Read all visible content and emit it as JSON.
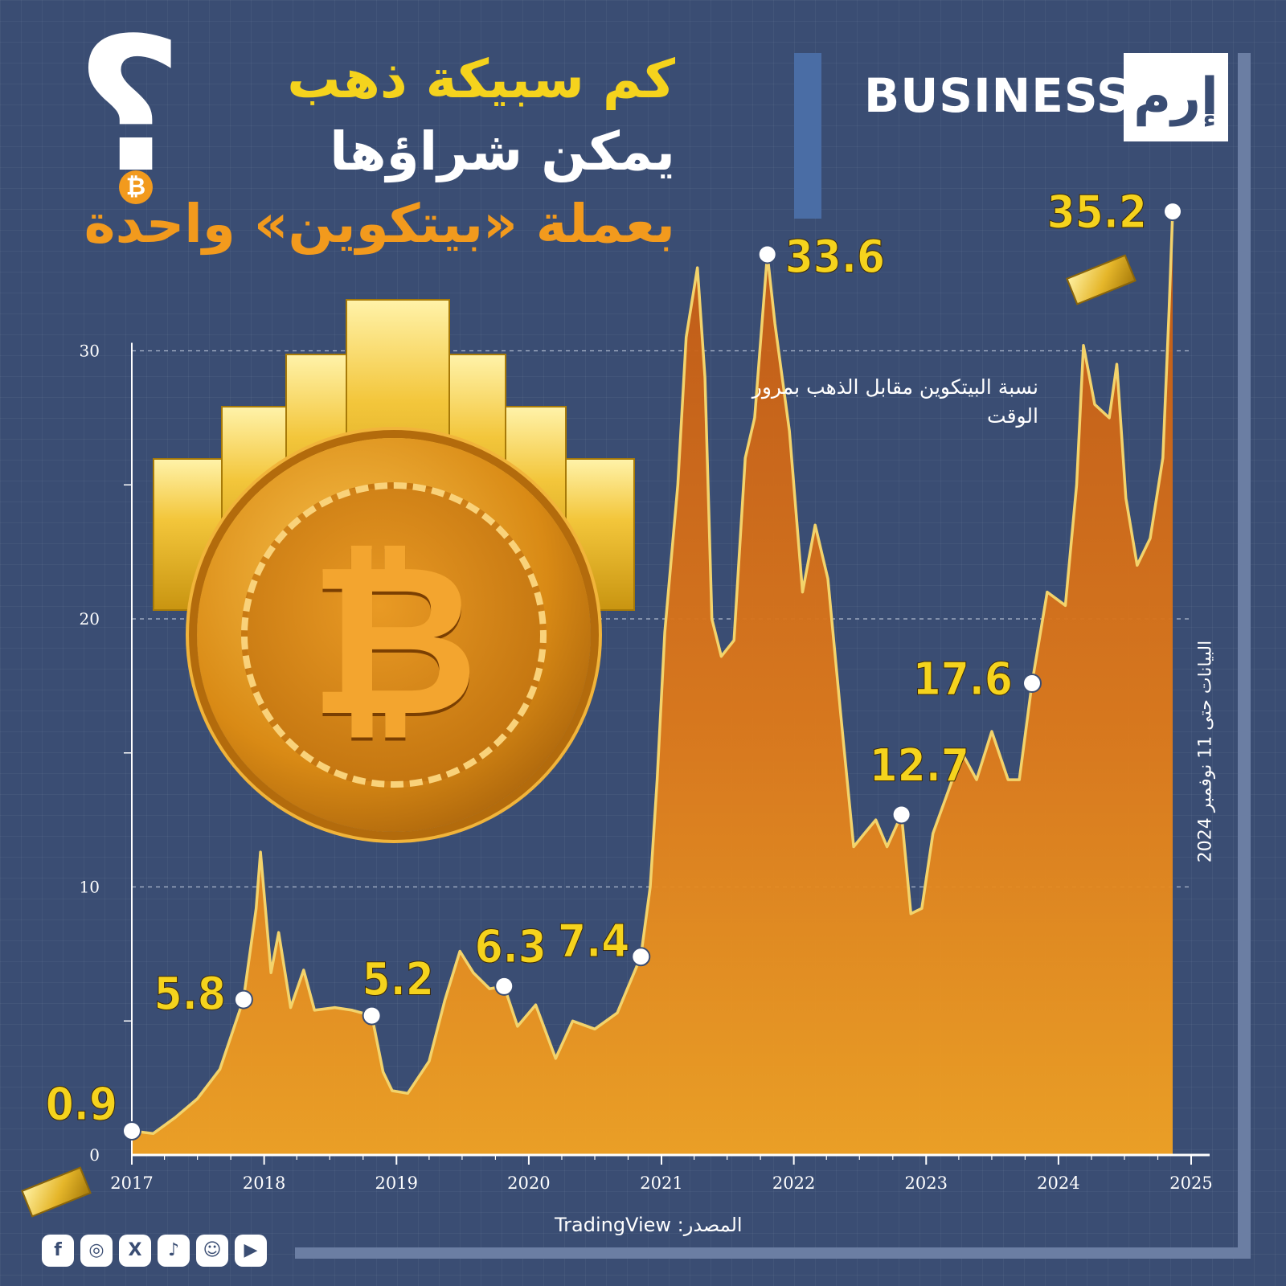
{
  "header": {
    "title_line1": "كم سبيكة ذهب",
    "title_line2": "يمكن شراؤها",
    "title_line3": "بعملة «بيتكوين» واحدة",
    "brand": "BUSINESS",
    "logo": "إرم"
  },
  "annotation": {
    "series_note": "نسبة البيتكوين مقابل الذهب بمرور الوقت",
    "data_date_note": "البيانات حتى 11 نوفمبر 2024"
  },
  "footer": {
    "source": "المصدر: TradingView",
    "social_icons": [
      "facebook-icon",
      "instagram-icon",
      "x-icon",
      "tiktok-icon",
      "snapchat-icon",
      "youtube-icon"
    ]
  },
  "colors": {
    "background": "#3a4d73",
    "line": "#f3d36b",
    "fill_top": "#d9691a",
    "fill_bottom": "#f5a41f",
    "label": "#f5d31d"
  },
  "chart_data": {
    "type": "area",
    "title": "",
    "xlabel": "",
    "ylabel": "",
    "x_ticks": [
      "2017",
      "2018",
      "2019",
      "2020",
      "2021",
      "2022",
      "2023",
      "2024",
      "2025"
    ],
    "y_ticks": [
      "0",
      "10",
      "20",
      "30"
    ],
    "xlim": [
      "2017-01-01",
      "2025-01-01"
    ],
    "ylim": [
      0,
      30
    ],
    "grid": "horizontal dashed at 10, 20, 30",
    "series": [
      {
        "points": [
          [
            "2017-01-01",
            0.9
          ],
          [
            "2017-03-01",
            0.8
          ],
          [
            "2017-05-01",
            1.4
          ],
          [
            "2017-07-01",
            2.1
          ],
          [
            "2017-09-01",
            3.2
          ],
          [
            "2017-11-05",
            5.8
          ],
          [
            "2017-12-10",
            9.2
          ],
          [
            "2017-12-22",
            11.3
          ],
          [
            "2018-01-20",
            6.8
          ],
          [
            "2018-02-10",
            8.3
          ],
          [
            "2018-03-15",
            5.5
          ],
          [
            "2018-04-20",
            6.9
          ],
          [
            "2018-05-20",
            5.4
          ],
          [
            "2018-07-15",
            5.5
          ],
          [
            "2018-09-01",
            5.4
          ],
          [
            "2018-10-25",
            5.2
          ],
          [
            "2018-11-25",
            3.1
          ],
          [
            "2018-12-20",
            2.4
          ],
          [
            "2019-02-01",
            2.3
          ],
          [
            "2019-04-01",
            3.5
          ],
          [
            "2019-05-15",
            5.8
          ],
          [
            "2019-06-25",
            7.6
          ],
          [
            "2019-08-01",
            6.8
          ],
          [
            "2019-09-15",
            6.2
          ],
          [
            "2019-10-25",
            6.3
          ],
          [
            "2019-12-01",
            4.8
          ],
          [
            "2020-01-20",
            5.6
          ],
          [
            "2020-03-15",
            3.6
          ],
          [
            "2020-05-01",
            5.0
          ],
          [
            "2020-07-01",
            4.7
          ],
          [
            "2020-09-01",
            5.3
          ],
          [
            "2020-11-05",
            7.4
          ],
          [
            "2020-12-01",
            10.0
          ],
          [
            "2020-12-20",
            14.0
          ],
          [
            "2021-01-10",
            19.5
          ],
          [
            "2021-02-15",
            25.0
          ],
          [
            "2021-03-10",
            30.5
          ],
          [
            "2021-04-10",
            33.1
          ],
          [
            "2021-05-01",
            29.0
          ],
          [
            "2021-05-20",
            20.0
          ],
          [
            "2021-06-15",
            18.6
          ],
          [
            "2021-07-20",
            19.2
          ],
          [
            "2021-08-20",
            26.0
          ],
          [
            "2021-09-15",
            27.5
          ],
          [
            "2021-10-20",
            33.6
          ],
          [
            "2021-11-10",
            31.0
          ],
          [
            "2021-12-20",
            27.0
          ],
          [
            "2022-01-25",
            21.0
          ],
          [
            "2022-03-01",
            23.5
          ],
          [
            "2022-04-05",
            21.5
          ],
          [
            "2022-05-10",
            16.5
          ],
          [
            "2022-06-15",
            11.5
          ],
          [
            "2022-07-15",
            12.0
          ],
          [
            "2022-08-15",
            12.5
          ],
          [
            "2022-09-15",
            11.5
          ],
          [
            "2022-10-25",
            12.7
          ],
          [
            "2022-11-20",
            9.0
          ],
          [
            "2022-12-20",
            9.2
          ],
          [
            "2023-01-20",
            12.0
          ],
          [
            "2023-03-01",
            13.5
          ],
          [
            "2023-04-10",
            15.0
          ],
          [
            "2023-05-20",
            14.0
          ],
          [
            "2023-07-01",
            15.8
          ],
          [
            "2023-08-15",
            14.0
          ],
          [
            "2023-09-15",
            14.0
          ],
          [
            "2023-10-20",
            17.6
          ],
          [
            "2023-12-01",
            21.0
          ],
          [
            "2024-01-20",
            20.5
          ],
          [
            "2024-02-20",
            25.0
          ],
          [
            "2024-03-10",
            30.2
          ],
          [
            "2024-04-10",
            28.0
          ],
          [
            "2024-05-20",
            27.5
          ],
          [
            "2024-06-10",
            29.5
          ],
          [
            "2024-07-05",
            24.5
          ],
          [
            "2024-08-05",
            22.0
          ],
          [
            "2024-09-10",
            23.0
          ],
          [
            "2024-10-15",
            26.0
          ],
          [
            "2024-11-01",
            31.5
          ],
          [
            "2024-11-11",
            35.2
          ]
        ]
      }
    ],
    "labeled_points": [
      {
        "x": "2017-01-01",
        "y": 0.9,
        "label": "0.9"
      },
      {
        "x": "2017-11-05",
        "y": 5.8,
        "label": "5.8"
      },
      {
        "x": "2018-10-25",
        "y": 5.2,
        "label": "5.2"
      },
      {
        "x": "2019-10-25",
        "y": 6.3,
        "label": "6.3"
      },
      {
        "x": "2020-11-05",
        "y": 7.4,
        "label": "7.4"
      },
      {
        "x": "2021-10-20",
        "y": 33.6,
        "label": "33.6"
      },
      {
        "x": "2022-10-25",
        "y": 12.7,
        "label": "12.7"
      },
      {
        "x": "2023-10-20",
        "y": 17.6,
        "label": "17.6"
      },
      {
        "x": "2024-11-11",
        "y": 35.2,
        "label": "35.2"
      }
    ]
  }
}
